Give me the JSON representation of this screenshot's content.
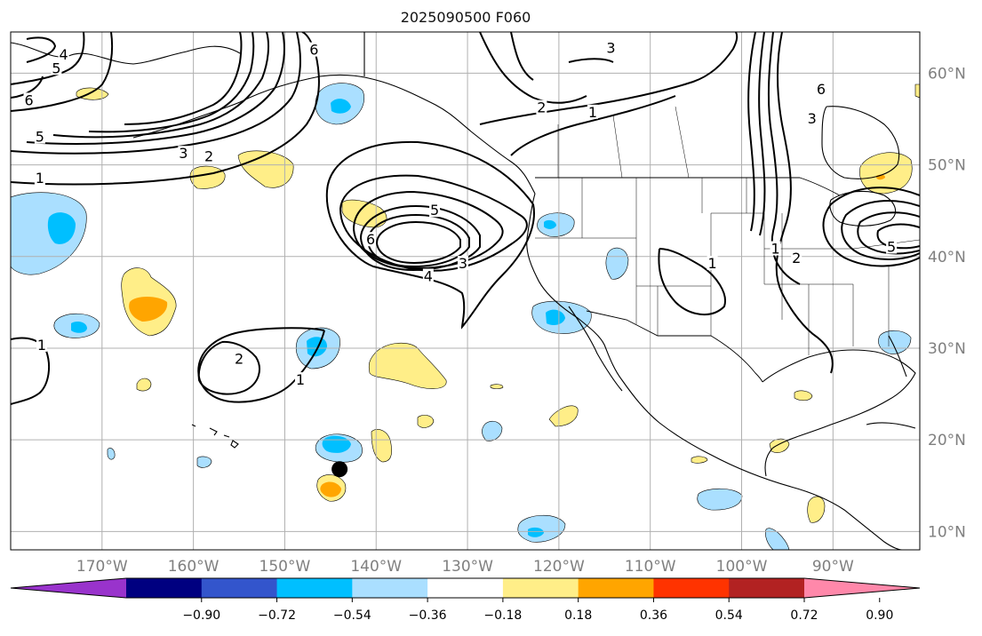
{
  "title": "2025090500 F060",
  "map": {
    "lon_min": -180,
    "lon_max": -80.5,
    "lat_min": 8,
    "lat_max": 64.5,
    "grid": true,
    "lon_ticks": [
      {
        "value": -170,
        "label": "170°W"
      },
      {
        "value": -160,
        "label": "160°W"
      },
      {
        "value": -150,
        "label": "150°W"
      },
      {
        "value": -140,
        "label": "140°W"
      },
      {
        "value": -130,
        "label": "130°W"
      },
      {
        "value": -120,
        "label": "120°W"
      },
      {
        "value": -110,
        "label": "110°W"
      },
      {
        "value": -100,
        "label": "100°W"
      },
      {
        "value": -90,
        "label": "90°W"
      }
    ],
    "lat_ticks": [
      {
        "value": 10,
        "label": "10°N"
      },
      {
        "value": 20,
        "label": "20°N"
      },
      {
        "value": 30,
        "label": "30°N"
      },
      {
        "value": 40,
        "label": "40°N"
      },
      {
        "value": 50,
        "label": "50°N"
      },
      {
        "value": 60,
        "label": "60°N"
      }
    ],
    "marker": {
      "lon": -144,
      "lat": 16.8,
      "color": "#000000"
    }
  },
  "colorbar": {
    "colors": [
      "#9933cc",
      "#000080",
      "#3355cc",
      "#00bfff",
      "#aadfff",
      "#ffffff",
      "#ffee88",
      "#ffa500",
      "#ff3300",
      "#b22222",
      "#ff88aa"
    ],
    "tick_labels": [
      "−0.90",
      "−0.72",
      "−0.54",
      "−0.36",
      "−0.18",
      "0.18",
      "0.36",
      "0.54",
      "0.72",
      "0.90"
    ]
  },
  "contour_labels": [
    {
      "text": "4",
      "lon": -174.2,
      "lat": 62.0
    },
    {
      "text": "5",
      "lon": -175.0,
      "lat": 60.5
    },
    {
      "text": "6",
      "lon": -178.0,
      "lat": 57.0
    },
    {
      "text": "5",
      "lon": -176.8,
      "lat": 53.0
    },
    {
      "text": "3",
      "lon": -161.1,
      "lat": 51.2
    },
    {
      "text": "2",
      "lon": -158.3,
      "lat": 50.9
    },
    {
      "text": "1",
      "lon": -176.8,
      "lat": 48.5
    },
    {
      "text": "6",
      "lon": -146.8,
      "lat": 62.5
    },
    {
      "text": "5",
      "lon": -133.6,
      "lat": 45.0
    },
    {
      "text": "6",
      "lon": -140.6,
      "lat": 41.8
    },
    {
      "text": "4",
      "lon": -134.3,
      "lat": 37.8
    },
    {
      "text": "3",
      "lon": -130.5,
      "lat": 39.2
    },
    {
      "text": "2",
      "lon": -121.9,
      "lat": 56.2
    },
    {
      "text": "1",
      "lon": -116.3,
      "lat": 55.7
    },
    {
      "text": "3",
      "lon": -114.3,
      "lat": 62.7
    },
    {
      "text": "1",
      "lon": -103.2,
      "lat": 39.2
    },
    {
      "text": "2",
      "lon": -155.0,
      "lat": 28.8
    },
    {
      "text": "1",
      "lon": -148.3,
      "lat": 26.5
    },
    {
      "text": "1",
      "lon": -176.6,
      "lat": 30.3
    },
    {
      "text": "6",
      "lon": -91.3,
      "lat": 58.2
    },
    {
      "text": "3",
      "lon": -92.3,
      "lat": 55.0
    },
    {
      "text": "1",
      "lon": -96.3,
      "lat": 40.8
    },
    {
      "text": "2",
      "lon": -94.0,
      "lat": 39.8
    },
    {
      "text": "5",
      "lon": -83.6,
      "lat": 41.0
    }
  ]
}
